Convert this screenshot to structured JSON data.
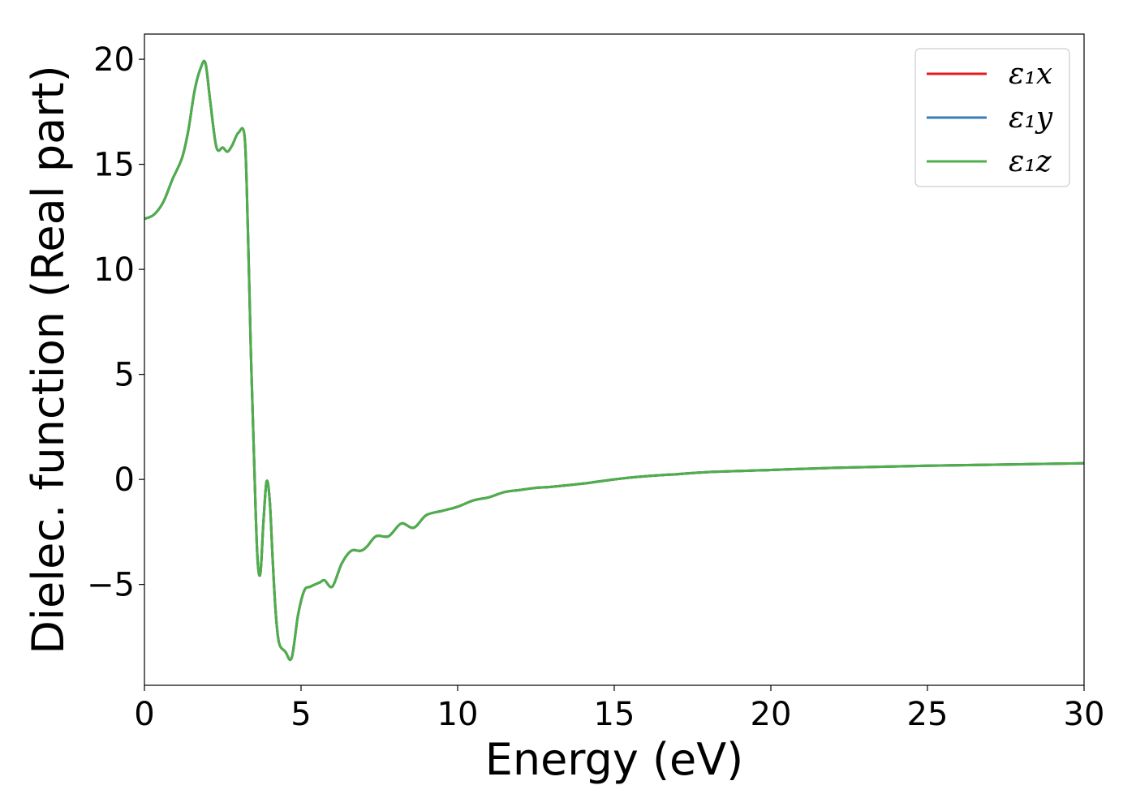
{
  "chart_data": {
    "type": "line",
    "title": "",
    "xlabel": "Energy (eV)",
    "ylabel": "Dielec. function (Real part)",
    "xlim": [
      0,
      30
    ],
    "ylim": [
      -9.8,
      21.2
    ],
    "xticks": [
      0,
      5,
      10,
      15,
      20,
      25,
      30
    ],
    "xtick_labels": [
      "0",
      "5",
      "10",
      "15",
      "20",
      "25",
      "30"
    ],
    "yticks": [
      -5,
      0,
      5,
      10,
      15,
      20
    ],
    "ytick_labels": [
      "−5",
      "0",
      "5",
      "10",
      "15",
      "20"
    ],
    "grid": false,
    "legend_position": "upper right",
    "series": [
      {
        "name": "ε₁x",
        "color": "#e41a1c",
        "x": [
          0,
          0.3,
          0.6,
          0.9,
          1.2,
          1.4,
          1.6,
          1.8,
          1.95,
          2.1,
          2.3,
          2.5,
          2.65,
          2.8,
          3.0,
          3.2,
          3.3,
          3.4,
          3.5,
          3.6,
          3.7,
          3.8,
          3.9,
          4.0,
          4.1,
          4.2,
          4.3,
          4.5,
          4.7,
          4.9,
          5.1,
          5.3,
          5.6,
          5.75,
          6.0,
          6.3,
          6.6,
          6.9,
          7.1,
          7.4,
          7.8,
          8.2,
          8.6,
          9.0,
          9.5,
          10.0,
          10.5,
          11.0,
          11.5,
          12.0,
          12.5,
          13.0,
          14.0,
          15.0,
          16.0,
          17.0,
          18.0,
          20.0,
          22.0,
          25.0,
          28.0,
          30.0
        ],
        "y": [
          12.4,
          12.6,
          13.2,
          14.3,
          15.3,
          16.6,
          18.5,
          19.6,
          19.8,
          18.0,
          15.8,
          15.8,
          15.6,
          15.9,
          16.5,
          16.3,
          12.0,
          6.0,
          1.0,
          -3.5,
          -4.5,
          -2.0,
          -0.1,
          -1.0,
          -4.0,
          -6.5,
          -7.8,
          -8.2,
          -8.5,
          -6.5,
          -5.3,
          -5.1,
          -4.9,
          -4.8,
          -5.1,
          -4.0,
          -3.4,
          -3.4,
          -3.2,
          -2.7,
          -2.7,
          -2.1,
          -2.3,
          -1.7,
          -1.5,
          -1.3,
          -1.0,
          -0.85,
          -0.6,
          -0.5,
          -0.4,
          -0.35,
          -0.2,
          0.0,
          0.15,
          0.25,
          0.35,
          0.45,
          0.55,
          0.65,
          0.72,
          0.77
        ]
      },
      {
        "name": "ε₁y",
        "color": "#377eb8",
        "x": [
          0,
          0.3,
          0.6,
          0.9,
          1.2,
          1.4,
          1.6,
          1.8,
          1.95,
          2.1,
          2.3,
          2.5,
          2.65,
          2.8,
          3.0,
          3.2,
          3.3,
          3.4,
          3.5,
          3.6,
          3.7,
          3.8,
          3.9,
          4.0,
          4.1,
          4.2,
          4.3,
          4.5,
          4.7,
          4.9,
          5.1,
          5.3,
          5.6,
          5.75,
          6.0,
          6.3,
          6.6,
          6.9,
          7.1,
          7.4,
          7.8,
          8.2,
          8.6,
          9.0,
          9.5,
          10.0,
          10.5,
          11.0,
          11.5,
          12.0,
          12.5,
          13.0,
          14.0,
          15.0,
          16.0,
          17.0,
          18.0,
          20.0,
          22.0,
          25.0,
          28.0,
          30.0
        ],
        "y": [
          12.4,
          12.6,
          13.2,
          14.3,
          15.3,
          16.6,
          18.5,
          19.6,
          19.8,
          18.0,
          15.8,
          15.8,
          15.6,
          15.9,
          16.5,
          16.3,
          12.0,
          6.0,
          1.0,
          -3.5,
          -4.5,
          -2.0,
          -0.1,
          -1.0,
          -4.0,
          -6.5,
          -7.8,
          -8.2,
          -8.5,
          -6.5,
          -5.3,
          -5.1,
          -4.9,
          -4.8,
          -5.1,
          -4.0,
          -3.4,
          -3.4,
          -3.2,
          -2.7,
          -2.7,
          -2.1,
          -2.3,
          -1.7,
          -1.5,
          -1.3,
          -1.0,
          -0.85,
          -0.6,
          -0.5,
          -0.4,
          -0.35,
          -0.2,
          0.0,
          0.15,
          0.25,
          0.35,
          0.45,
          0.55,
          0.65,
          0.72,
          0.77
        ]
      },
      {
        "name": "ε₁z",
        "color": "#4daf4a",
        "x": [
          0,
          0.3,
          0.6,
          0.9,
          1.2,
          1.4,
          1.6,
          1.8,
          1.95,
          2.1,
          2.3,
          2.5,
          2.65,
          2.8,
          3.0,
          3.2,
          3.3,
          3.4,
          3.5,
          3.6,
          3.7,
          3.8,
          3.9,
          4.0,
          4.1,
          4.2,
          4.3,
          4.5,
          4.7,
          4.9,
          5.1,
          5.3,
          5.6,
          5.75,
          6.0,
          6.3,
          6.6,
          6.9,
          7.1,
          7.4,
          7.8,
          8.2,
          8.6,
          9.0,
          9.5,
          10.0,
          10.5,
          11.0,
          11.5,
          12.0,
          12.5,
          13.0,
          14.0,
          15.0,
          16.0,
          17.0,
          18.0,
          20.0,
          22.0,
          25.0,
          28.0,
          30.0
        ],
        "y": [
          12.4,
          12.6,
          13.2,
          14.3,
          15.3,
          16.6,
          18.5,
          19.6,
          19.8,
          18.0,
          15.8,
          15.8,
          15.6,
          15.9,
          16.5,
          16.3,
          12.0,
          6.0,
          1.0,
          -3.5,
          -4.5,
          -2.0,
          -0.1,
          -1.0,
          -4.0,
          -6.5,
          -7.8,
          -8.2,
          -8.5,
          -6.5,
          -5.3,
          -5.1,
          -4.9,
          -4.8,
          -5.1,
          -4.0,
          -3.4,
          -3.4,
          -3.2,
          -2.7,
          -2.7,
          -2.1,
          -2.3,
          -1.7,
          -1.5,
          -1.3,
          -1.0,
          -0.85,
          -0.6,
          -0.5,
          -0.4,
          -0.35,
          -0.2,
          0.0,
          0.15,
          0.25,
          0.35,
          0.45,
          0.55,
          0.65,
          0.72,
          0.77
        ]
      }
    ]
  }
}
